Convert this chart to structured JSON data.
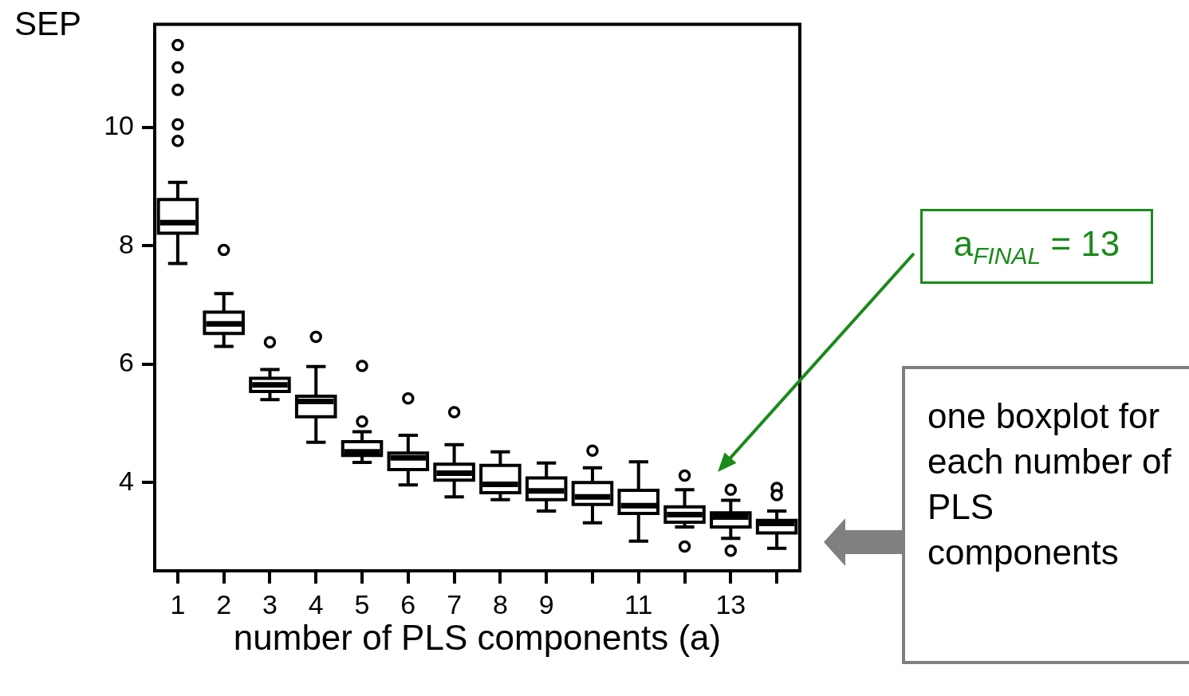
{
  "chart_data": {
    "type": "box",
    "ylabel": "SEP",
    "xlabel": "number of PLS components (a)",
    "categories": [
      "1",
      "2",
      "3",
      "4",
      "5",
      "6",
      "7",
      "8",
      "9",
      null,
      "11",
      null,
      "13",
      null
    ],
    "ylim": [
      2.51,
      11.74
    ],
    "yticks": [
      4,
      6,
      8,
      10
    ],
    "grid": false,
    "legend": false,
    "marker": "circle",
    "color": "#ffffff",
    "boxes": [
      {
        "low": 7.7,
        "q1": 8.21,
        "median": 8.39,
        "q3": 8.78,
        "high": 9.07,
        "outliers": [
          11.39,
          11.01,
          10.63,
          10.05,
          9.77
        ]
      },
      {
        "low": 6.3,
        "q1": 6.52,
        "median": 6.68,
        "q3": 6.88,
        "high": 7.19,
        "outliers": [
          7.93
        ]
      },
      {
        "low": 5.4,
        "q1": 5.54,
        "median": 5.65,
        "q3": 5.76,
        "high": 5.91,
        "outliers": [
          6.37
        ]
      },
      {
        "low": 4.68,
        "q1": 5.11,
        "median": 5.37,
        "q3": 5.46,
        "high": 5.96,
        "outliers": [
          6.46
        ]
      },
      {
        "low": 4.34,
        "q1": 4.46,
        "median": 4.52,
        "q3": 4.69,
        "high": 4.86,
        "outliers": [
          5.97,
          5.03
        ]
      },
      {
        "low": 3.96,
        "q1": 4.22,
        "median": 4.42,
        "q3": 4.5,
        "high": 4.8,
        "outliers": [
          5.42
        ]
      },
      {
        "low": 3.76,
        "q1": 4.04,
        "median": 4.16,
        "q3": 4.31,
        "high": 4.64,
        "outliers": [
          5.19
        ]
      },
      {
        "low": 3.71,
        "q1": 3.83,
        "median": 3.97,
        "q3": 4.29,
        "high": 4.52
      },
      {
        "low": 3.52,
        "q1": 3.71,
        "median": 3.86,
        "q3": 4.08,
        "high": 4.33
      },
      {
        "low": 3.32,
        "q1": 3.63,
        "median": 3.76,
        "q3": 4.0,
        "high": 4.25,
        "outliers": [
          4.54
        ]
      },
      {
        "low": 3.01,
        "q1": 3.48,
        "median": 3.61,
        "q3": 3.87,
        "high": 4.35
      },
      {
        "low": 3.25,
        "q1": 3.33,
        "median": 3.46,
        "q3": 3.59,
        "high": 3.88,
        "outliers": [
          4.12,
          2.92
        ]
      },
      {
        "low": 3.06,
        "q1": 3.25,
        "median": 3.42,
        "q3": 3.49,
        "high": 3.7,
        "outliers": [
          3.88,
          2.85
        ]
      },
      {
        "low": 2.89,
        "q1": 3.15,
        "median": 3.31,
        "q3": 3.36,
        "high": 3.52,
        "outliers": [
          3.91,
          3.79
        ]
      }
    ],
    "annotations": [
      "a$_{FINAL}$ = 13",
      "one boxplot for each number of PLS components"
    ]
  }
}
